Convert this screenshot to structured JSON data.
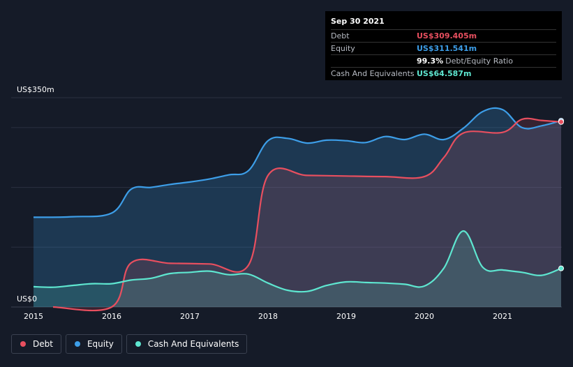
{
  "tooltip": {
    "date": "Sep 30 2021",
    "rows": [
      {
        "label": "Debt",
        "value": "US$309.405m",
        "color": "#e84f5f"
      },
      {
        "label": "Equity",
        "value": "US$311.541m",
        "color": "#3d9ee8"
      },
      {
        "label": "",
        "value": "99.3%",
        "extra": "Debt/Equity Ratio",
        "color": "#ffffff"
      },
      {
        "label": "Cash And Equivalents",
        "value": "US$64.587m",
        "color": "#5ee6d0"
      }
    ]
  },
  "legend": [
    {
      "label": "Debt",
      "color": "#e84f5f"
    },
    {
      "label": "Equity",
      "color": "#3d9ee8"
    },
    {
      "label": "Cash And Equivalents",
      "color": "#5ee6d0"
    }
  ],
  "chart_data": {
    "type": "area",
    "y_top_label": "US$350m",
    "y_bottom_label": "US$0",
    "ylim": [
      0,
      350
    ],
    "xlim": [
      2014.9,
      2021.75
    ],
    "x_ticks": [
      "2015",
      "2016",
      "2017",
      "2018",
      "2019",
      "2020",
      "2021"
    ],
    "grid": true,
    "series": [
      {
        "name": "Debt",
        "color": "#e84f5f",
        "x": [
          2015.25,
          2016.0,
          2016.25,
          2016.75,
          2017.25,
          2017.75,
          2018.0,
          2018.5,
          2019.0,
          2019.5,
          2020.0,
          2020.25,
          2020.5,
          2021.0,
          2021.25,
          2021.5,
          2021.75
        ],
        "y": [
          0,
          0,
          74,
          73,
          72,
          70,
          220,
          220,
          219,
          218,
          218,
          250,
          291,
          292,
          314,
          312,
          309.4
        ]
      },
      {
        "name": "Equity",
        "color": "#3d9ee8",
        "x": [
          2015.0,
          2015.5,
          2016.0,
          2016.25,
          2016.5,
          2016.75,
          2017.0,
          2017.25,
          2017.5,
          2017.75,
          2018.0,
          2018.25,
          2018.5,
          2018.75,
          2019.0,
          2019.25,
          2019.5,
          2019.75,
          2020.0,
          2020.25,
          2020.5,
          2020.75,
          2021.0,
          2021.25,
          2021.5,
          2021.75
        ],
        "y": [
          150,
          151,
          157,
          197,
          200,
          205,
          209,
          214,
          221,
          228,
          278,
          282,
          274,
          279,
          278,
          275,
          285,
          280,
          289,
          280,
          299,
          327,
          330,
          300,
          303,
          311.5
        ]
      },
      {
        "name": "Cash And Equivalents",
        "color": "#5ee6d0",
        "x": [
          2015.0,
          2015.25,
          2015.5,
          2015.75,
          2016.0,
          2016.25,
          2016.5,
          2016.75,
          2017.0,
          2017.25,
          2017.5,
          2017.75,
          2018.0,
          2018.25,
          2018.5,
          2018.75,
          2019.0,
          2019.25,
          2019.5,
          2019.75,
          2020.0,
          2020.25,
          2020.5,
          2020.75,
          2021.0,
          2021.25,
          2021.5,
          2021.75
        ],
        "y": [
          34,
          33,
          36,
          39,
          39,
          45,
          48,
          56,
          58,
          60,
          54,
          55,
          40,
          28,
          26,
          36,
          42,
          41,
          40,
          38,
          35,
          65,
          127,
          66,
          62,
          58,
          53,
          64.6
        ]
      }
    ]
  }
}
